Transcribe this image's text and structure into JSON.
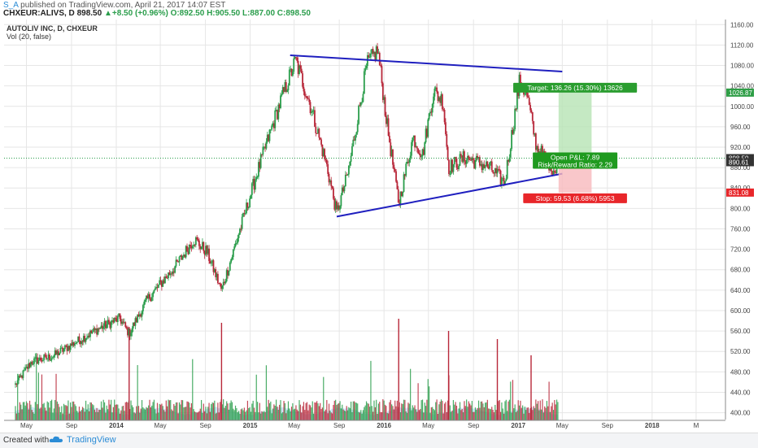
{
  "header": {
    "username": "S_A",
    "published": "published on TradingView.com, April 21, 2017 14:07 EST",
    "symbol": "CHXEUR:ALIVS, D",
    "last": "898.50",
    "change": "+8.50 (+0.96%)",
    "open": "O:892.50",
    "high": "H:905.50",
    "low": "L:887.00",
    "close": "C:898.50"
  },
  "footer": {
    "created": "Created with",
    "brand": "TradingView"
  },
  "chart_data": {
    "type": "candlestick",
    "title": "AUTOLIV INC, D, CHXEUR",
    "volume_label": "Vol (20, false)",
    "y_ticks": [
      400,
      440,
      480,
      520,
      560,
      600,
      640,
      680,
      720,
      760,
      800,
      840,
      880,
      920,
      960,
      1000,
      1040,
      1080,
      1120,
      1160
    ],
    "ylim": [
      385,
      1170
    ],
    "x_ticks": [
      "May",
      "Sep",
      "2014",
      "May",
      "Sep",
      "2015",
      "May",
      "Sep",
      "2016",
      "May",
      "Sep",
      "2017",
      "May",
      "Sep",
      "2018",
      "M"
    ],
    "price_path": [
      {
        "date": "2013-04-01",
        "price": 455
      },
      {
        "date": "2013-05-15",
        "price": 500
      },
      {
        "date": "2013-07-10",
        "price": 510
      },
      {
        "date": "2013-09-05",
        "price": 535
      },
      {
        "date": "2013-11-15",
        "price": 565
      },
      {
        "date": "2014-01-10",
        "price": 585
      },
      {
        "date": "2014-02-05",
        "price": 555
      },
      {
        "date": "2014-03-25",
        "price": 620
      },
      {
        "date": "2014-06-15",
        "price": 690
      },
      {
        "date": "2014-08-01",
        "price": 740
      },
      {
        "date": "2014-09-05",
        "price": 715
      },
      {
        "date": "2014-10-15",
        "price": 640
      },
      {
        "date": "2014-12-05",
        "price": 760
      },
      {
        "date": "2015-01-20",
        "price": 870
      },
      {
        "date": "2015-03-20",
        "price": 1000
      },
      {
        "date": "2015-05-05",
        "price": 1090
      },
      {
        "date": "2015-06-15",
        "price": 1000
      },
      {
        "date": "2015-07-30",
        "price": 880
      },
      {
        "date": "2015-08-25",
        "price": 790
      },
      {
        "date": "2015-09-25",
        "price": 870
      },
      {
        "date": "2015-11-15",
        "price": 1080
      },
      {
        "date": "2015-12-15",
        "price": 1110
      },
      {
        "date": "2016-01-10",
        "price": 960
      },
      {
        "date": "2016-02-10",
        "price": 810
      },
      {
        "date": "2016-03-20",
        "price": 940
      },
      {
        "date": "2016-04-15",
        "price": 905
      },
      {
        "date": "2016-05-15",
        "price": 1030
      },
      {
        "date": "2016-06-10",
        "price": 1010
      },
      {
        "date": "2016-06-25",
        "price": 880
      },
      {
        "date": "2016-08-10",
        "price": 900
      },
      {
        "date": "2016-10-15",
        "price": 880
      },
      {
        "date": "2016-11-25",
        "price": 850
      },
      {
        "date": "2017-01-05",
        "price": 1050
      },
      {
        "date": "2017-01-25",
        "price": 1020
      },
      {
        "date": "2017-02-20",
        "price": 920
      },
      {
        "date": "2017-04-10",
        "price": 875
      },
      {
        "date": "2017-04-21",
        "price": 898.5
      }
    ],
    "trendlines": [
      {
        "name": "upper",
        "color": "#1f1fbf",
        "from": {
          "date": "2015-04-20",
          "price": 1100
        },
        "to": {
          "date": "2017-05-01",
          "price": 1068
        }
      },
      {
        "name": "lower",
        "color": "#1f1fbf",
        "from": {
          "date": "2015-08-25",
          "price": 784
        },
        "to": {
          "date": "2017-05-01",
          "price": 868
        }
      }
    ],
    "position": {
      "x_start": "2017-04-21",
      "x_end": "2017-07-20",
      "entry": 890.61,
      "target": 1026.87,
      "stop": 831.08,
      "target_label": "Target: 136.26 (15.30%) 13626",
      "stop_label": "Stop: 59.53 (6.68%) 5953",
      "pnl_label": "Open P&L: 7.89",
      "rr_label": "Risk/Reward Ratio: 2.29"
    },
    "price_tags": [
      {
        "value": 1026.87,
        "label": "1026.87",
        "color": "#2e9e46"
      },
      {
        "value": 898.5,
        "label": "898.50",
        "color": "#333333"
      },
      {
        "value": 890.61,
        "label": "890.61",
        "color": "#333333"
      },
      {
        "value": 831.08,
        "label": "831.08",
        "color": "#e8262a"
      }
    ],
    "current_price": 898.5,
    "colors": {
      "up": "#2a9d4b",
      "down": "#b8283a",
      "volume_ma": "#a7d3f0",
      "grid": "#e6e6e6"
    }
  }
}
